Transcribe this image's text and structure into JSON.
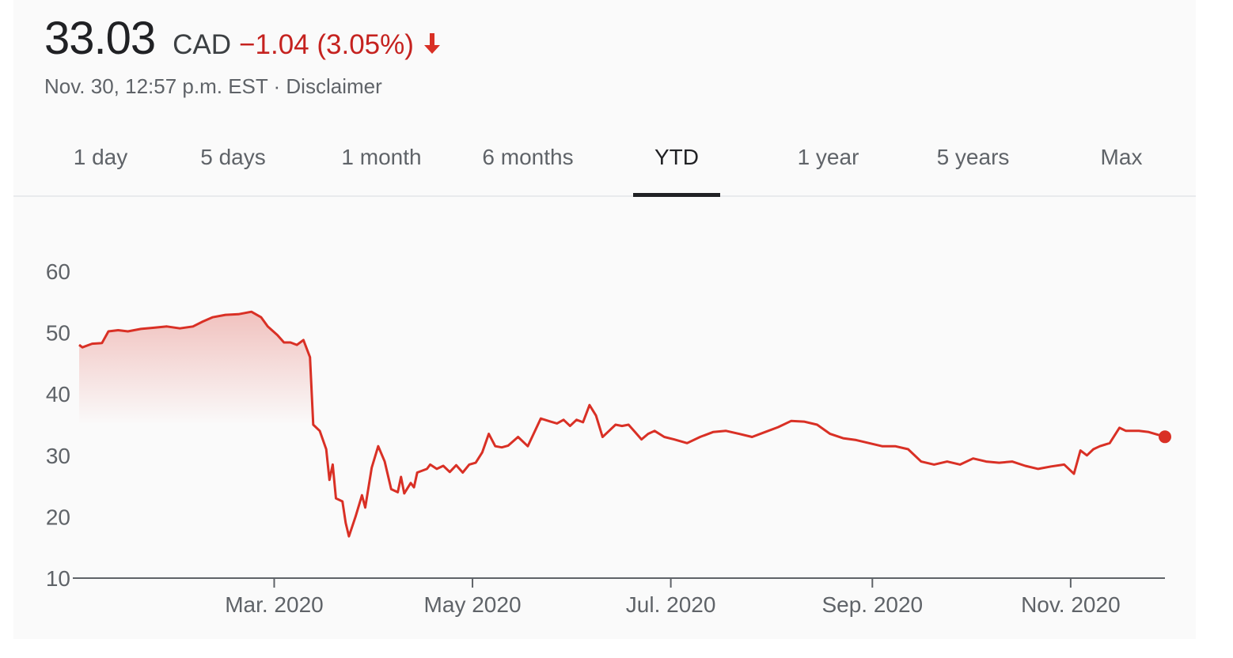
{
  "quote": {
    "price": "33.03",
    "currency": "CAD",
    "change": "−1.04 (3.05%)",
    "direction_icon": "arrow-down-icon",
    "timestamp": "Nov. 30, 12:57 p.m. EST",
    "separator": " · ",
    "disclaimer": "Disclaimer"
  },
  "colors": {
    "negative": "#d93025",
    "text_primary": "#202124",
    "text_secondary": "#5f6368"
  },
  "tabs": [
    {
      "label": "1 day",
      "active": false
    },
    {
      "label": "5 days",
      "active": false
    },
    {
      "label": "1 month",
      "active": false
    },
    {
      "label": "6 months",
      "active": false
    },
    {
      "label": "YTD",
      "active": true
    },
    {
      "label": "1 year",
      "active": false
    },
    {
      "label": "5 years",
      "active": false
    },
    {
      "label": "Max",
      "active": false
    }
  ],
  "chart_data": {
    "type": "line",
    "title": "",
    "xlabel": "",
    "ylabel": "",
    "ylim": [
      10,
      60
    ],
    "yticks": [
      "60",
      "50",
      "40",
      "30",
      "20",
      "10"
    ],
    "xticks": [
      {
        "label": "Mar. 2020",
        "date": "2020-03-01"
      },
      {
        "label": "May 2020",
        "date": "2020-05-01"
      },
      {
        "label": "Jul. 2020",
        "date": "2020-07-01"
      },
      {
        "label": "Sep. 2020",
        "date": "2020-09-01"
      },
      {
        "label": "Nov. 2020",
        "date": "2020-11-01"
      }
    ],
    "xlim": [
      "2020-01-01",
      "2020-11-30"
    ],
    "grid": false,
    "color": "#d93025",
    "series": [
      {
        "name": "",
        "points": [
          [
            "2020-01-01",
            48.0
          ],
          [
            "2020-01-02",
            47.6
          ],
          [
            "2020-01-05",
            48.2
          ],
          [
            "2020-01-08",
            48.3
          ],
          [
            "2020-01-10",
            50.2
          ],
          [
            "2020-01-13",
            50.4
          ],
          [
            "2020-01-16",
            50.2
          ],
          [
            "2020-01-20",
            50.6
          ],
          [
            "2020-01-24",
            50.8
          ],
          [
            "2020-01-28",
            51.0
          ],
          [
            "2020-02-01",
            50.7
          ],
          [
            "2020-02-05",
            51.0
          ],
          [
            "2020-02-08",
            51.8
          ],
          [
            "2020-02-11",
            52.5
          ],
          [
            "2020-02-15",
            52.9
          ],
          [
            "2020-02-19",
            53.0
          ],
          [
            "2020-02-23",
            53.4
          ],
          [
            "2020-02-26",
            52.5
          ],
          [
            "2020-02-28",
            51.0
          ],
          [
            "2020-03-02",
            49.6
          ],
          [
            "2020-03-04",
            48.4
          ],
          [
            "2020-03-06",
            48.4
          ],
          [
            "2020-03-08",
            48.0
          ],
          [
            "2020-03-10",
            48.8
          ],
          [
            "2020-03-12",
            46.0
          ],
          [
            "2020-03-13",
            35.0
          ],
          [
            "2020-03-15",
            34.0
          ],
          [
            "2020-03-17",
            31.0
          ],
          [
            "2020-03-18",
            26.0
          ],
          [
            "2020-03-19",
            28.5
          ],
          [
            "2020-03-20",
            23.0
          ],
          [
            "2020-03-22",
            22.5
          ],
          [
            "2020-03-23",
            19.0
          ],
          [
            "2020-03-24",
            16.8
          ],
          [
            "2020-03-26",
            20.0
          ],
          [
            "2020-03-28",
            23.5
          ],
          [
            "2020-03-29",
            21.5
          ],
          [
            "2020-03-31",
            28.0
          ],
          [
            "2020-04-02",
            31.5
          ],
          [
            "2020-04-04",
            29.0
          ],
          [
            "2020-04-06",
            24.5
          ],
          [
            "2020-04-08",
            24.0
          ],
          [
            "2020-04-09",
            26.5
          ],
          [
            "2020-04-10",
            23.8
          ],
          [
            "2020-04-12",
            25.5
          ],
          [
            "2020-04-13",
            24.8
          ],
          [
            "2020-04-14",
            27.2
          ],
          [
            "2020-04-17",
            27.8
          ],
          [
            "2020-04-18",
            28.5
          ],
          [
            "2020-04-20",
            27.8
          ],
          [
            "2020-04-22",
            28.3
          ],
          [
            "2020-04-24",
            27.3
          ],
          [
            "2020-04-26",
            28.4
          ],
          [
            "2020-04-28",
            27.2
          ],
          [
            "2020-04-30",
            28.5
          ],
          [
            "2020-05-02",
            28.8
          ],
          [
            "2020-05-04",
            30.5
          ],
          [
            "2020-05-06",
            33.5
          ],
          [
            "2020-05-08",
            31.5
          ],
          [
            "2020-05-10",
            31.3
          ],
          [
            "2020-05-12",
            31.6
          ],
          [
            "2020-05-15",
            33.0
          ],
          [
            "2020-05-18",
            31.5
          ],
          [
            "2020-05-22",
            36.0
          ],
          [
            "2020-05-25",
            35.5
          ],
          [
            "2020-05-27",
            35.2
          ],
          [
            "2020-05-29",
            35.8
          ],
          [
            "2020-05-31",
            34.8
          ],
          [
            "2020-06-02",
            35.8
          ],
          [
            "2020-06-04",
            35.4
          ],
          [
            "2020-06-06",
            38.2
          ],
          [
            "2020-06-08",
            36.5
          ],
          [
            "2020-06-10",
            33.0
          ],
          [
            "2020-06-12",
            34.0
          ],
          [
            "2020-06-14",
            35.0
          ],
          [
            "2020-06-16",
            34.8
          ],
          [
            "2020-06-18",
            35.0
          ],
          [
            "2020-06-20",
            33.8
          ],
          [
            "2020-06-22",
            32.6
          ],
          [
            "2020-06-24",
            33.5
          ],
          [
            "2020-06-26",
            34.0
          ],
          [
            "2020-06-29",
            33.0
          ],
          [
            "2020-07-02",
            32.6
          ],
          [
            "2020-07-06",
            32.0
          ],
          [
            "2020-07-10",
            33.0
          ],
          [
            "2020-07-14",
            33.8
          ],
          [
            "2020-07-18",
            34.0
          ],
          [
            "2020-07-22",
            33.5
          ],
          [
            "2020-07-26",
            33.0
          ],
          [
            "2020-07-30",
            33.8
          ],
          [
            "2020-08-03",
            34.6
          ],
          [
            "2020-08-07",
            35.6
          ],
          [
            "2020-08-11",
            35.5
          ],
          [
            "2020-08-15",
            35.0
          ],
          [
            "2020-08-19",
            33.5
          ],
          [
            "2020-08-23",
            32.8
          ],
          [
            "2020-08-27",
            32.5
          ],
          [
            "2020-08-31",
            32.0
          ],
          [
            "2020-09-04",
            31.5
          ],
          [
            "2020-09-08",
            31.5
          ],
          [
            "2020-09-12",
            31.0
          ],
          [
            "2020-09-16",
            29.0
          ],
          [
            "2020-09-20",
            28.5
          ],
          [
            "2020-09-24",
            29.0
          ],
          [
            "2020-09-28",
            28.5
          ],
          [
            "2020-10-02",
            29.5
          ],
          [
            "2020-10-06",
            29.0
          ],
          [
            "2020-10-10",
            28.8
          ],
          [
            "2020-10-14",
            29.0
          ],
          [
            "2020-10-18",
            28.3
          ],
          [
            "2020-10-22",
            27.8
          ],
          [
            "2020-10-26",
            28.2
          ],
          [
            "2020-10-30",
            28.5
          ],
          [
            "2020-11-02",
            27.0
          ],
          [
            "2020-11-04",
            30.8
          ],
          [
            "2020-11-06",
            30.0
          ],
          [
            "2020-11-08",
            31.0
          ],
          [
            "2020-11-10",
            31.5
          ],
          [
            "2020-11-13",
            32.0
          ],
          [
            "2020-11-16",
            34.5
          ],
          [
            "2020-11-18",
            34.0
          ],
          [
            "2020-11-22",
            34.0
          ],
          [
            "2020-11-25",
            33.8
          ],
          [
            "2020-11-30",
            33.03
          ]
        ]
      }
    ]
  }
}
